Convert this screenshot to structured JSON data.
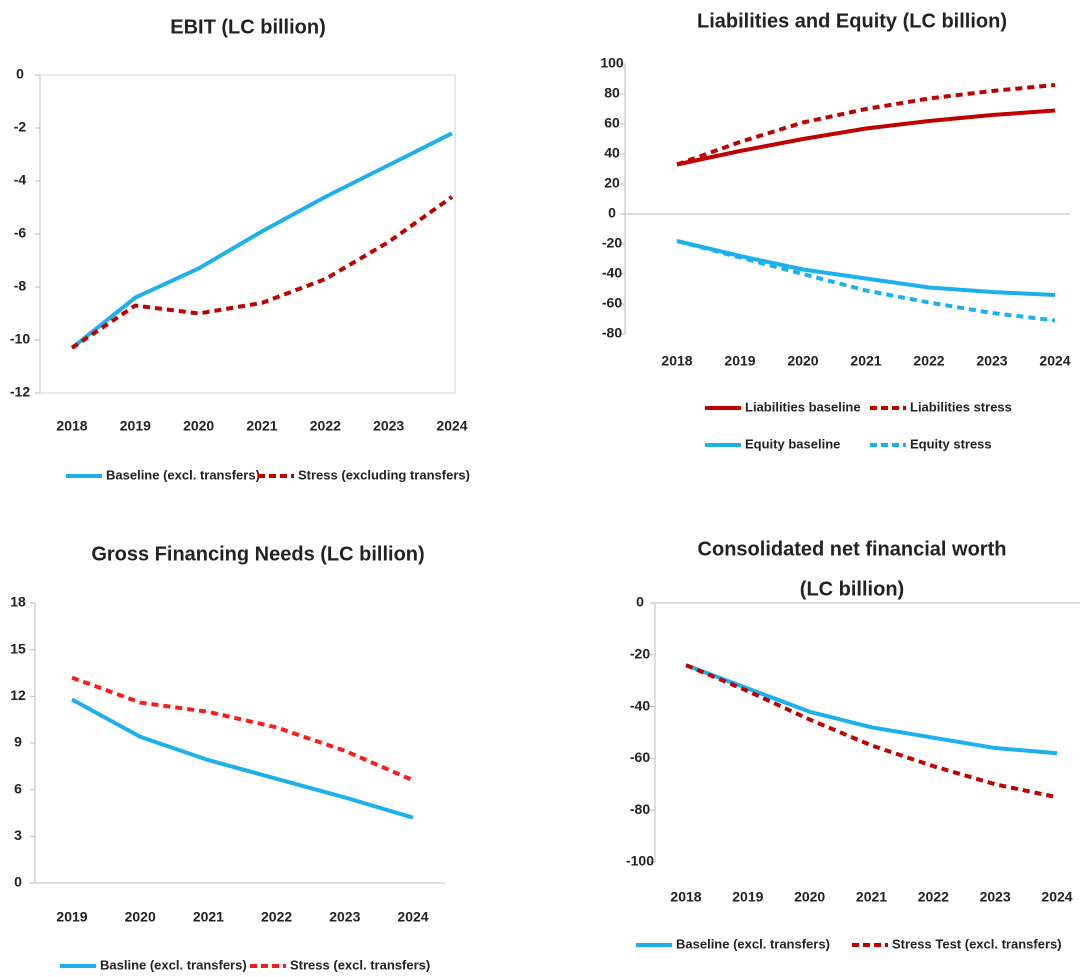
{
  "chart_data": [
    {
      "type": "line",
      "title": "EBIT (LC billion)",
      "frame": true,
      "categories": [
        "2018",
        "2019",
        "2020",
        "2021",
        "2022",
        "2023",
        "2024"
      ],
      "ylim": [
        -12,
        0
      ],
      "yticks": [
        0,
        -2,
        -4,
        -6,
        -8,
        -10,
        -12
      ],
      "series": [
        {
          "name": "Baseline (excl. transfers)",
          "color": "#1cb0ec",
          "dashed": false,
          "values": [
            -10.3,
            -8.4,
            -7.3,
            -5.9,
            -4.6,
            -3.4,
            -2.2
          ]
        },
        {
          "name": "Stress (excluding transfers)",
          "color": "#c00000",
          "dashed": true,
          "values": [
            -10.3,
            -8.7,
            -9.0,
            -8.6,
            -7.7,
            -6.3,
            -4.6
          ]
        }
      ]
    },
    {
      "type": "line",
      "title": "Liabilities and Equity (LC billion)",
      "frame": false,
      "categories": [
        "2018",
        "2019",
        "2020",
        "2021",
        "2022",
        "2023",
        "2024"
      ],
      "ylim": [
        -80,
        100
      ],
      "yticks": [
        100,
        80,
        60,
        40,
        20,
        0,
        -20,
        -40,
        -60,
        -80
      ],
      "series": [
        {
          "name": "Liabilities baseline",
          "color": "#c00000",
          "dashed": false,
          "values": [
            33,
            42,
            50,
            57,
            62,
            66,
            69
          ]
        },
        {
          "name": "Liabilities stress",
          "color": "#c00000",
          "dashed": true,
          "values": [
            33,
            48,
            61,
            70,
            77,
            82,
            86
          ]
        },
        {
          "name": "Equity baseline",
          "color": "#1cb0ec",
          "dashed": false,
          "values": [
            -18,
            -28,
            -37,
            -43,
            -49,
            -52,
            -54
          ]
        },
        {
          "name": "Equity stress",
          "color": "#1cb0ec",
          "dashed": true,
          "values": [
            -18,
            -29,
            -40,
            -51,
            -59,
            -66,
            -71
          ]
        }
      ]
    },
    {
      "type": "line",
      "title": "Gross Financing Needs (LC billion)",
      "frame": false,
      "categories": [
        "2019",
        "2020",
        "2021",
        "2022",
        "2023",
        "2024"
      ],
      "ylim": [
        0,
        18
      ],
      "yticks": [
        18,
        15,
        12,
        9,
        6,
        3,
        0
      ],
      "series": [
        {
          "name": "Basline (excl. transfers)",
          "color": "#1cb0ec",
          "dashed": false,
          "values": [
            11.8,
            9.4,
            7.9,
            6.7,
            5.5,
            4.2
          ]
        },
        {
          "name": "Stress (excl. transfers)",
          "color": "#ff1a1a",
          "dashed": true,
          "values": [
            13.2,
            11.6,
            11.0,
            10.0,
            8.5,
            6.6
          ]
        }
      ]
    },
    {
      "type": "line",
      "title": "Consolidated net financial worth",
      "subtitle": "(LC billion)",
      "frame": false,
      "categories": [
        "2018",
        "2019",
        "2020",
        "2021",
        "2022",
        "2023",
        "2024"
      ],
      "ylim": [
        -100,
        0
      ],
      "yticks": [
        0,
        -20,
        -40,
        -60,
        -80,
        -100
      ],
      "series": [
        {
          "name": "Baseline (excl. transfers)",
          "color": "#1cb0ec",
          "dashed": false,
          "values": [
            -24,
            -33,
            -42,
            -48,
            -52,
            -56,
            -58
          ]
        },
        {
          "name": "Stress Test (excl. transfers)",
          "color": "#c00000",
          "dashed": true,
          "values": [
            -24,
            -34,
            -45,
            -55,
            -63,
            -70,
            -75
          ]
        }
      ]
    }
  ]
}
